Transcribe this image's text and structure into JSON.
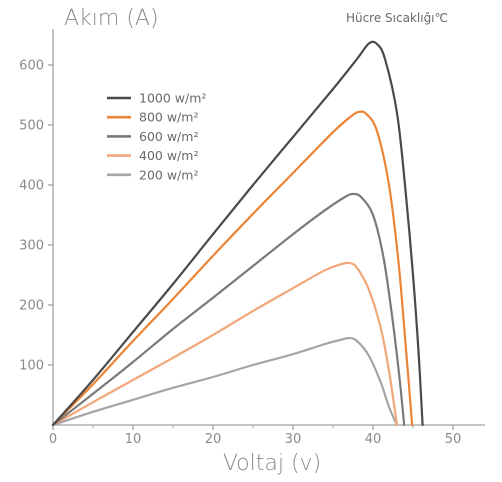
{
  "chart_data": {
    "type": "line",
    "ylabel": "Akım (A)",
    "xlabel": "Voltaj (v)",
    "note": "Hücre Sıcaklığı℃",
    "xlim": [
      0,
      54
    ],
    "ylim": [
      0,
      660
    ],
    "xticks": [
      0,
      10,
      20,
      30,
      40,
      50
    ],
    "yticks": [
      100,
      200,
      300,
      400,
      500,
      600
    ],
    "legend_position": "top-left",
    "series": [
      {
        "name": "1000 w/m²",
        "color": "#4a4a4a",
        "points": [
          [
            0,
            0
          ],
          [
            5,
            75
          ],
          [
            10,
            155
          ],
          [
            15,
            235
          ],
          [
            20,
            318
          ],
          [
            25,
            400
          ],
          [
            30,
            480
          ],
          [
            35,
            560
          ],
          [
            38,
            610
          ],
          [
            39.5,
            636
          ],
          [
            40.5,
            635
          ],
          [
            41.5,
            610
          ],
          [
            43,
            520
          ],
          [
            44,
            400
          ],
          [
            45,
            250
          ],
          [
            45.7,
            120
          ],
          [
            46.2,
            0
          ]
        ]
      },
      {
        "name": "800 w/m²",
        "color": "#ec8436",
        "points": [
          [
            0,
            0
          ],
          [
            5,
            68
          ],
          [
            10,
            140
          ],
          [
            15,
            210
          ],
          [
            20,
            282
          ],
          [
            25,
            352
          ],
          [
            30,
            420
          ],
          [
            35,
            488
          ],
          [
            37.3,
            515
          ],
          [
            38.3,
            522
          ],
          [
            39.2,
            518
          ],
          [
            40.5,
            490
          ],
          [
            42,
            400
          ],
          [
            43.2,
            270
          ],
          [
            44.1,
            130
          ],
          [
            44.9,
            0
          ]
        ]
      },
      {
        "name": "600 w/m²",
        "color": "#7a7a7a",
        "points": [
          [
            0,
            0
          ],
          [
            5,
            52
          ],
          [
            10,
            105
          ],
          [
            15,
            160
          ],
          [
            20,
            212
          ],
          [
            25,
            265
          ],
          [
            30,
            318
          ],
          [
            34,
            358
          ],
          [
            36.5,
            380
          ],
          [
            37.5,
            385
          ],
          [
            38.5,
            380
          ],
          [
            40,
            350
          ],
          [
            41.3,
            280
          ],
          [
            42.4,
            180
          ],
          [
            43.3,
            80
          ],
          [
            43.9,
            0
          ]
        ]
      },
      {
        "name": "400 w/m²",
        "color": "#f2a77a",
        "points": [
          [
            0,
            0
          ],
          [
            5,
            38
          ],
          [
            10,
            75
          ],
          [
            15,
            112
          ],
          [
            20,
            150
          ],
          [
            25,
            190
          ],
          [
            30,
            228
          ],
          [
            34,
            258
          ],
          [
            36,
            268
          ],
          [
            37,
            270
          ],
          [
            38,
            262
          ],
          [
            39.5,
            225
          ],
          [
            41,
            160
          ],
          [
            42,
            90
          ],
          [
            43,
            0
          ]
        ]
      },
      {
        "name": "200 w/m²",
        "color": "#a5a5a5",
        "points": [
          [
            0,
            0
          ],
          [
            5,
            22
          ],
          [
            10,
            42
          ],
          [
            15,
            62
          ],
          [
            20,
            80
          ],
          [
            25,
            100
          ],
          [
            30,
            118
          ],
          [
            34,
            135
          ],
          [
            36,
            142
          ],
          [
            37,
            145
          ],
          [
            38,
            140
          ],
          [
            39.5,
            115
          ],
          [
            41,
            70
          ],
          [
            42,
            30
          ],
          [
            43,
            0
          ]
        ]
      }
    ]
  }
}
